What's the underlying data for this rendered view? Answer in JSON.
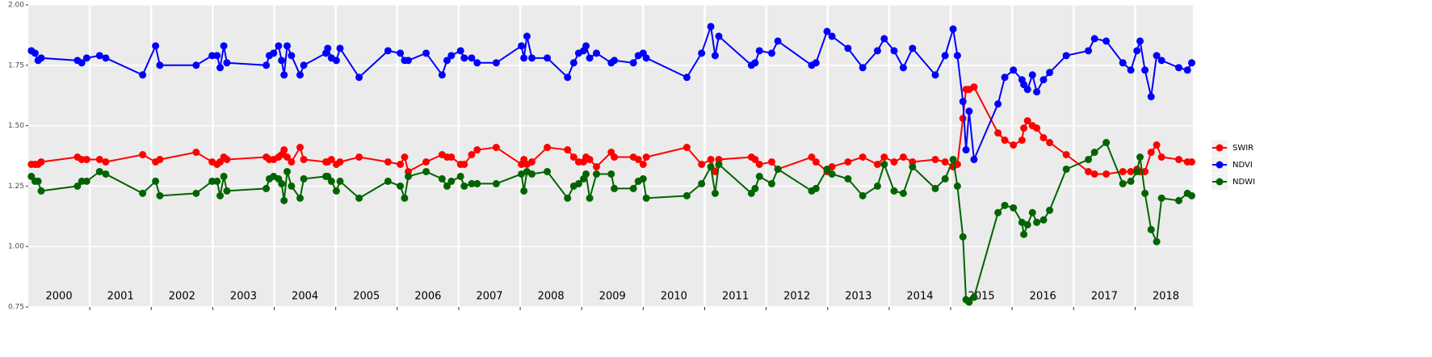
{
  "chart_data": {
    "type": "line",
    "x": [
      2000.05,
      2000.11,
      2000.16,
      2000.21,
      2000.8,
      2000.87,
      2000.95,
      2001.16,
      2001.26,
      2001.86,
      2002.07,
      2002.14,
      2002.73,
      2002.99,
      2003.07,
      2003.12,
      2003.18,
      2003.23,
      2003.87,
      2003.92,
      2003.99,
      2004.07,
      2004.12,
      2004.16,
      2004.21,
      2004.28,
      2004.42,
      2004.48,
      2004.84,
      2004.87,
      2004.93,
      2005.01,
      2005.07,
      2005.38,
      2005.85,
      2006.05,
      2006.12,
      2006.18,
      2006.47,
      2006.73,
      2006.81,
      2006.88,
      2007.03,
      2007.09,
      2007.21,
      2007.3,
      2007.61,
      2008.02,
      2008.06,
      2008.11,
      2008.19,
      2008.44,
      2008.77,
      2008.87,
      2008.95,
      2009.03,
      2009.07,
      2009.13,
      2009.24,
      2009.48,
      2009.53,
      2009.84,
      2009.92,
      2010.0,
      2010.05,
      2010.71,
      2010.95,
      2011.1,
      2011.17,
      2011.23,
      2011.76,
      2011.82,
      2011.89,
      2012.09,
      2012.19,
      2012.74,
      2012.81,
      2012.99,
      2013.07,
      2013.33,
      2013.57,
      2013.81,
      2013.92,
      2014.08,
      2014.23,
      2014.38,
      2014.75,
      2014.91,
      2015.04,
      2015.11,
      2015.2,
      2015.25,
      2015.3,
      2015.38,
      2015.77,
      2015.88,
      2016.02,
      2016.16,
      2016.19,
      2016.25,
      2016.33,
      2016.4,
      2016.51,
      2016.61,
      2016.88,
      2017.24,
      2017.34,
      2017.53,
      2017.8,
      2017.93,
      2018.03,
      2018.08,
      2018.16,
      2018.26,
      2018.35,
      2018.43,
      2018.71,
      2018.85,
      2018.92
    ],
    "series": [
      {
        "name": "SWIR",
        "color": "#ff0000",
        "values": [
          1.34,
          1.34,
          1.34,
          1.35,
          1.37,
          1.36,
          1.36,
          1.36,
          1.35,
          1.38,
          1.35,
          1.36,
          1.39,
          1.35,
          1.34,
          1.35,
          1.37,
          1.36,
          1.37,
          1.36,
          1.36,
          1.37,
          1.38,
          1.4,
          1.37,
          1.35,
          1.41,
          1.36,
          1.35,
          1.35,
          1.36,
          1.34,
          1.35,
          1.37,
          1.35,
          1.34,
          1.37,
          1.31,
          1.35,
          1.38,
          1.37,
          1.37,
          1.34,
          1.34,
          1.38,
          1.4,
          1.41,
          1.34,
          1.36,
          1.34,
          1.35,
          1.41,
          1.4,
          1.37,
          1.35,
          1.35,
          1.37,
          1.36,
          1.33,
          1.39,
          1.37,
          1.37,
          1.36,
          1.34,
          1.37,
          1.41,
          1.34,
          1.36,
          1.31,
          1.36,
          1.37,
          1.36,
          1.34,
          1.35,
          1.32,
          1.37,
          1.35,
          1.31,
          1.33,
          1.35,
          1.37,
          1.34,
          1.37,
          1.35,
          1.37,
          1.35,
          1.36,
          1.35,
          1.33,
          1.34,
          1.53,
          1.65,
          1.65,
          1.66,
          1.47,
          1.44,
          1.42,
          1.44,
          1.49,
          1.52,
          1.5,
          1.49,
          1.45,
          1.43,
          1.38,
          1.31,
          1.3,
          1.3,
          1.31,
          1.31,
          1.32,
          1.31,
          1.31,
          1.39,
          1.42,
          1.37,
          1.36,
          1.35,
          1.35
        ]
      },
      {
        "name": "NDVI",
        "color": "#0000ff",
        "values": [
          1.81,
          1.8,
          1.77,
          1.78,
          1.77,
          1.76,
          1.78,
          1.79,
          1.78,
          1.71,
          1.83,
          1.75,
          1.75,
          1.79,
          1.79,
          1.74,
          1.83,
          1.76,
          1.75,
          1.79,
          1.8,
          1.83,
          1.77,
          1.71,
          1.83,
          1.79,
          1.71,
          1.75,
          1.8,
          1.82,
          1.78,
          1.77,
          1.82,
          1.7,
          1.81,
          1.8,
          1.77,
          1.77,
          1.8,
          1.71,
          1.77,
          1.79,
          1.81,
          1.78,
          1.78,
          1.76,
          1.76,
          1.83,
          1.78,
          1.87,
          1.78,
          1.78,
          1.7,
          1.76,
          1.8,
          1.81,
          1.83,
          1.78,
          1.8,
          1.76,
          1.77,
          1.76,
          1.79,
          1.8,
          1.78,
          1.7,
          1.8,
          1.91,
          1.79,
          1.87,
          1.75,
          1.76,
          1.81,
          1.8,
          1.85,
          1.75,
          1.76,
          1.89,
          1.87,
          1.82,
          1.74,
          1.81,
          1.86,
          1.81,
          1.74,
          1.82,
          1.71,
          1.79,
          1.9,
          1.79,
          1.6,
          1.4,
          1.56,
          1.36,
          1.59,
          1.7,
          1.73,
          1.69,
          1.67,
          1.65,
          1.71,
          1.64,
          1.69,
          1.72,
          1.79,
          1.81,
          1.86,
          1.85,
          1.76,
          1.73,
          1.81,
          1.85,
          1.73,
          1.62,
          1.79,
          1.77,
          1.74,
          1.73,
          1.76
        ]
      },
      {
        "name": "NDWI",
        "color": "#006400",
        "values": [
          1.29,
          1.27,
          1.27,
          1.23,
          1.25,
          1.27,
          1.27,
          1.31,
          1.3,
          1.22,
          1.27,
          1.21,
          1.22,
          1.27,
          1.27,
          1.21,
          1.29,
          1.23,
          1.24,
          1.28,
          1.29,
          1.28,
          1.26,
          1.19,
          1.31,
          1.25,
          1.2,
          1.28,
          1.29,
          1.29,
          1.27,
          1.23,
          1.27,
          1.2,
          1.27,
          1.25,
          1.2,
          1.29,
          1.31,
          1.28,
          1.25,
          1.27,
          1.29,
          1.25,
          1.26,
          1.26,
          1.26,
          1.3,
          1.23,
          1.31,
          1.3,
          1.31,
          1.2,
          1.25,
          1.26,
          1.28,
          1.3,
          1.2,
          1.3,
          1.3,
          1.24,
          1.24,
          1.27,
          1.28,
          1.2,
          1.21,
          1.26,
          1.33,
          1.22,
          1.34,
          1.22,
          1.24,
          1.29,
          1.26,
          1.32,
          1.23,
          1.24,
          1.32,
          1.3,
          1.28,
          1.21,
          1.25,
          1.34,
          1.23,
          1.22,
          1.33,
          1.24,
          1.28,
          1.36,
          1.25,
          1.04,
          0.78,
          0.77,
          0.79,
          1.14,
          1.17,
          1.16,
          1.1,
          1.05,
          1.09,
          1.14,
          1.1,
          1.11,
          1.15,
          1.32,
          1.36,
          1.39,
          1.43,
          1.26,
          1.27,
          1.31,
          1.37,
          1.22,
          1.07,
          1.02,
          1.2,
          1.19,
          1.22,
          1.21
        ]
      }
    ],
    "year_labels": [
      "2000",
      "2001",
      "2002",
      "2003",
      "2004",
      "2005",
      "2006",
      "2007",
      "2008",
      "2009",
      "2010",
      "2011",
      "2012",
      "2013",
      "2014",
      "2015",
      "2016",
      "2017",
      "2018"
    ],
    "xlim": [
      2000.0,
      2018.94
    ],
    "xticks": [
      2001,
      2002,
      2003,
      2004,
      2005,
      2006,
      2007,
      2008,
      2009,
      2010,
      2011,
      2012,
      2013,
      2014,
      2015,
      2016,
      2017,
      2018
    ],
    "ylim": [
      0.75,
      2.0
    ],
    "yticks": [
      {
        "value": 0.75,
        "label": "0.75"
      },
      {
        "value": 1,
        "label": "1.00"
      },
      {
        "value": 1.25,
        "label": "1.25"
      },
      {
        "value": 1.5,
        "label": "1.50"
      },
      {
        "value": 1.75,
        "label": "1.75"
      },
      {
        "value": 2,
        "label": "2.00"
      }
    ],
    "grid": true,
    "legend_position": "right"
  }
}
